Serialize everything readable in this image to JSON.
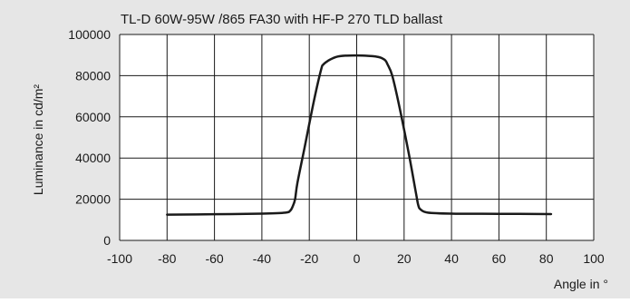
{
  "chart_data": {
    "type": "line",
    "title": "TL-D 60W-95W /865 FA30 with HF-P 270 TLD ballast",
    "xlabel": "Angle in °",
    "ylabel": "Luminance in cd/m²",
    "xlim": [
      -100,
      100
    ],
    "ylim": [
      0,
      100000
    ],
    "xticks": [
      -100,
      -80,
      -60,
      -40,
      -20,
      0,
      20,
      40,
      60,
      80,
      100
    ],
    "yticks": [
      0,
      20000,
      40000,
      60000,
      80000,
      100000
    ],
    "xtick_labels": [
      "-100",
      "-80",
      "-60",
      "-40",
      "-20",
      "0",
      "20",
      "40",
      "60",
      "80",
      "100"
    ],
    "ytick_labels": [
      "0",
      "20000",
      "40000",
      "60000",
      "80000",
      "100000"
    ],
    "grid": true,
    "background_color": "#e6e6e6",
    "plot_color": "#ffffff",
    "line_color": "#1a1a1a",
    "series": [
      {
        "x": [
          -80,
          -60,
          -40,
          -30,
          -28,
          -27,
          -26,
          -25,
          -22,
          -18,
          -15,
          -14,
          -12,
          -10,
          -8,
          -5,
          0,
          5,
          8,
          10,
          12,
          13,
          15,
          18,
          22,
          25,
          26,
          27,
          30,
          40,
          60,
          82
        ],
        "y": [
          12500,
          12700,
          13000,
          13500,
          14500,
          16500,
          20000,
          28000,
          45000,
          68000,
          83000,
          85500,
          87300,
          88500,
          89300,
          89700,
          89800,
          89600,
          89300,
          88800,
          87500,
          85500,
          80000,
          65000,
          42000,
          23000,
          17000,
          15000,
          13500,
          13000,
          12900,
          12800
        ]
      }
    ]
  }
}
